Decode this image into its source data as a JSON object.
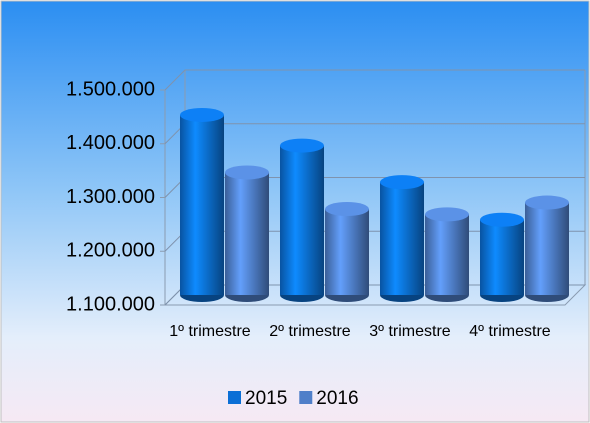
{
  "chart_data": {
    "type": "bar3d",
    "categories": [
      "1º trimestre",
      "2º trimestre",
      "3º trimestre",
      "4º trimestre"
    ],
    "series": [
      {
        "name": "2015",
        "color": "#0b6fd6",
        "values": [
          1435000,
          1378000,
          1310000,
          1240000
        ]
      },
      {
        "name": "2016",
        "color": "#4f7fc9",
        "values": [
          1328000,
          1260000,
          1250000,
          1272000
        ]
      }
    ],
    "ylim": [
      1100000,
      1500000
    ],
    "yticks": [
      {
        "value": 1100000,
        "label": "1.100.000"
      },
      {
        "value": 1200000,
        "label": "1.200.000"
      },
      {
        "value": 1300000,
        "label": "1.300.000"
      },
      {
        "value": 1400000,
        "label": "1.400.000"
      },
      {
        "value": 1500000,
        "label": "1.500.000"
      }
    ],
    "grid": true,
    "legend": "bottom"
  }
}
